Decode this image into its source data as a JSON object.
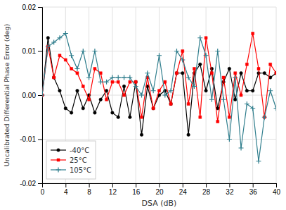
{
  "chart_data": {
    "type": "line",
    "xlabel": "DSA (dB)",
    "ylabel": "Uncalibrated Differential Phase Error (deg)",
    "x": [
      0,
      1,
      2,
      3,
      4,
      5,
      6,
      7,
      8,
      9,
      10,
      11,
      12,
      13,
      14,
      15,
      16,
      17,
      18,
      19,
      20,
      21,
      22,
      23,
      24,
      25,
      26,
      27,
      28,
      29,
      30,
      31,
      32,
      33,
      34,
      35,
      36,
      37,
      38,
      39,
      40
    ],
    "series": [
      {
        "name": "-40°C",
        "color": "#000000",
        "marker": "circle",
        "values": [
          0.0,
          0.013,
          0.004,
          0.001,
          -0.003,
          -0.004,
          0.001,
          -0.003,
          0.0,
          -0.004,
          -0.001,
          0.001,
          -0.004,
          -0.005,
          0.002,
          -0.005,
          0.003,
          -0.009,
          0.002,
          -0.003,
          0.0,
          0.001,
          -0.002,
          0.005,
          0.005,
          -0.009,
          0.005,
          0.007,
          0.001,
          0.006,
          -0.003,
          0.003,
          0.006,
          -0.001,
          0.005,
          0.001,
          0.001,
          0.005,
          0.005,
          0.004,
          0.005
        ]
      },
      {
        "name": "25°C",
        "color": "#ff0000",
        "marker": "square",
        "values": [
          0.0,
          0.011,
          0.004,
          0.009,
          0.008,
          0.006,
          0.005,
          0.002,
          -0.001,
          0.006,
          0.005,
          -0.001,
          0.003,
          0.003,
          0.0,
          0.003,
          0.003,
          -0.005,
          0.004,
          -0.003,
          0.001,
          0.003,
          -0.002,
          0.005,
          0.01,
          -0.002,
          0.006,
          -0.005,
          0.013,
          0.005,
          -0.006,
          0.004,
          -0.005,
          0.005,
          0.0,
          0.007,
          0.014,
          0.006,
          -0.005,
          0.007,
          0.005
        ]
      },
      {
        "name": "105°C",
        "color": "#2e7d8c",
        "marker": "plus",
        "values": [
          0.0,
          0.011,
          0.012,
          0.013,
          0.014,
          0.009,
          0.006,
          0.01,
          0.004,
          0.01,
          0.003,
          0.003,
          0.004,
          0.004,
          0.004,
          0.004,
          0.002,
          0.0,
          0.005,
          0.001,
          0.009,
          0.0,
          0.001,
          0.01,
          0.008,
          0.004,
          0.002,
          0.013,
          0.009,
          -0.001,
          0.01,
          -0.001,
          -0.01,
          0.004,
          -0.012,
          -0.002,
          -0.003,
          -0.015,
          -0.005,
          0.001,
          -0.003
        ]
      }
    ],
    "xlim": [
      0,
      40
    ],
    "ylim": [
      -0.02,
      0.02
    ],
    "xticks": [
      0,
      4,
      8,
      12,
      16,
      20,
      24,
      28,
      32,
      36,
      40
    ],
    "yticks": [
      -0.02,
      -0.01,
      {
        "value": 0,
        "label": "0.00"
      },
      0.01,
      0.02
    ],
    "grid": true,
    "legend": "lower left"
  }
}
